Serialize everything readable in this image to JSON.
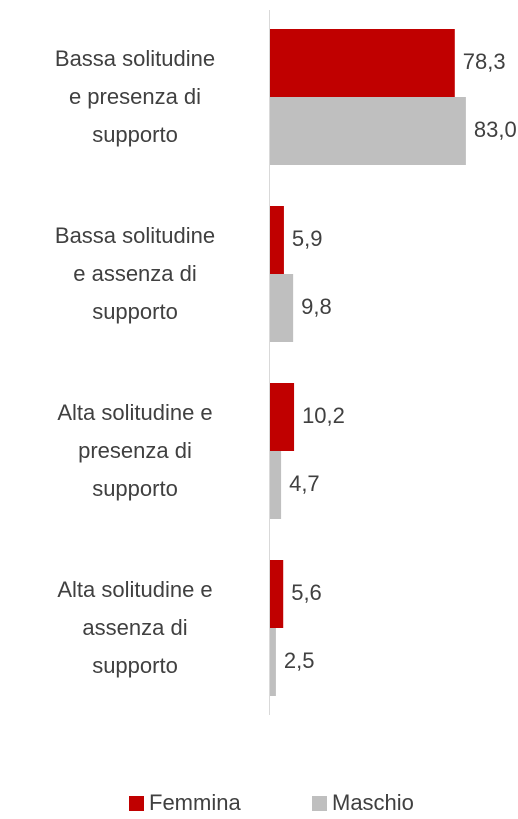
{
  "chart_data": {
    "type": "hbar",
    "categories": [
      "Bassa solitudine\ne presenza di\nsupporto",
      "Bassa solitudine\ne assenza di\nsupporto",
      "Alta solitudine e\npresenza di\nsupporto",
      "Alta solitudine e\nassenza di\nsupporto"
    ],
    "series": [
      {
        "name": "Femmina",
        "color": "#c00000",
        "values": [
          78.3,
          5.9,
          10.2,
          5.6
        ],
        "value_labels": [
          "78,3",
          "5,9",
          "10,2",
          "5,6"
        ]
      },
      {
        "name": "Maschio",
        "color": "#bfbfbf",
        "values": [
          83.0,
          9.8,
          4.7,
          2.5
        ],
        "value_labels": [
          "83,0",
          "9,8",
          "4,7",
          "2,5"
        ]
      }
    ],
    "xlim": [
      0,
      100
    ],
    "legend": "bottom"
  }
}
